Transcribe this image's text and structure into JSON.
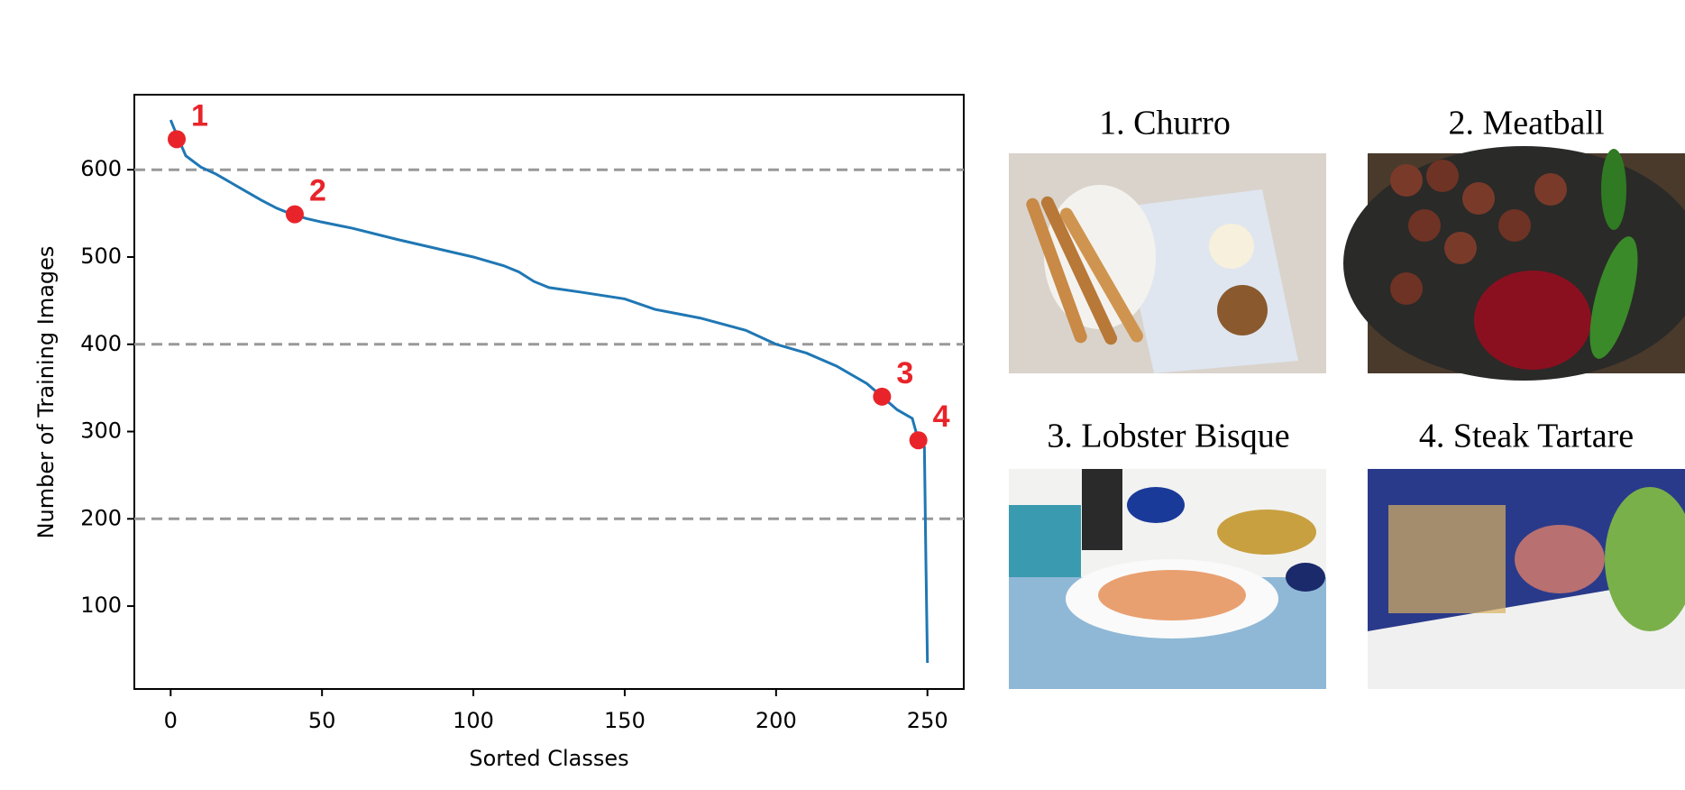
{
  "chart_data": {
    "type": "line",
    "xlabel": "Sorted Classes",
    "ylabel": "Number of Training Images",
    "series": [
      {
        "color": "#1f77b4",
        "x": [
          0,
          2,
          3,
          5,
          10,
          15,
          20,
          25,
          30,
          35,
          40,
          45,
          50,
          60,
          75,
          90,
          100,
          110,
          115,
          120,
          125,
          135,
          150,
          160,
          175,
          190,
          200,
          210,
          220,
          230,
          235,
          240,
          245,
          247,
          249,
          249.5,
          250
        ],
        "values": [
          657,
          640,
          632,
          616,
          603,
          595,
          585,
          575,
          565,
          556,
          549,
          544,
          540,
          533,
          520,
          508,
          500,
          490,
          483,
          472,
          465,
          460,
          452,
          440,
          430,
          416,
          400,
          390,
          375,
          355,
          340,
          325,
          315,
          290,
          282,
          150,
          35
        ]
      }
    ],
    "highlights": {
      "color": "#e8242a",
      "x": [
        2,
        41,
        235,
        247
      ],
      "values": [
        635,
        549,
        340,
        290
      ],
      "labels": [
        "1",
        "2",
        "3",
        "4"
      ]
    },
    "xlim": [
      -12,
      262
    ],
    "ylim": [
      5,
      686
    ],
    "xticks": [
      0,
      50,
      100,
      150,
      200,
      250
    ],
    "yticks": [
      100,
      200,
      300,
      400,
      500,
      600
    ],
    "ygrid": [
      200,
      400,
      600
    ]
  },
  "panels": [
    {
      "caption": "1. Churro"
    },
    {
      "caption": "2. Meatball"
    },
    {
      "caption": "3. Lobster Bisque"
    },
    {
      "caption": "4. Steak Tartare"
    }
  ]
}
